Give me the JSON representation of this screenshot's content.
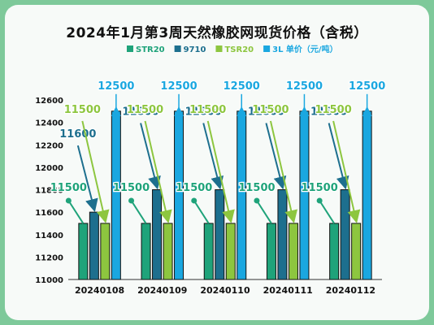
{
  "chart_data": {
    "type": "bar",
    "title": "2024年1月第3周天然橡胶网现货价格（含税）",
    "categories": [
      "20240108",
      "20240109",
      "20240110",
      "20240111",
      "20240112"
    ],
    "ylim": [
      11000,
      12600
    ],
    "yticks": [
      11000,
      11200,
      11400,
      11600,
      11800,
      12000,
      12200,
      12400,
      12600
    ],
    "legend_position": "top",
    "series": [
      {
        "name": "STR20",
        "color": "#1fa37a",
        "values": [
          11500,
          11500,
          11500,
          11500,
          11500
        ]
      },
      {
        "name": "9710",
        "color": "#1d6f8e",
        "values": [
          11600,
          11800,
          11800,
          11800,
          11800
        ]
      },
      {
        "name": "TSR20",
        "color": "#8dc63f",
        "values": [
          11500,
          11500,
          11500,
          11500,
          11500
        ]
      },
      {
        "name": "3L",
        "color": "#1aa7e0",
        "values": [
          12500,
          12500,
          12500,
          12500,
          12500
        ]
      }
    ],
    "legend_suffix": "单价（元/吨）"
  }
}
